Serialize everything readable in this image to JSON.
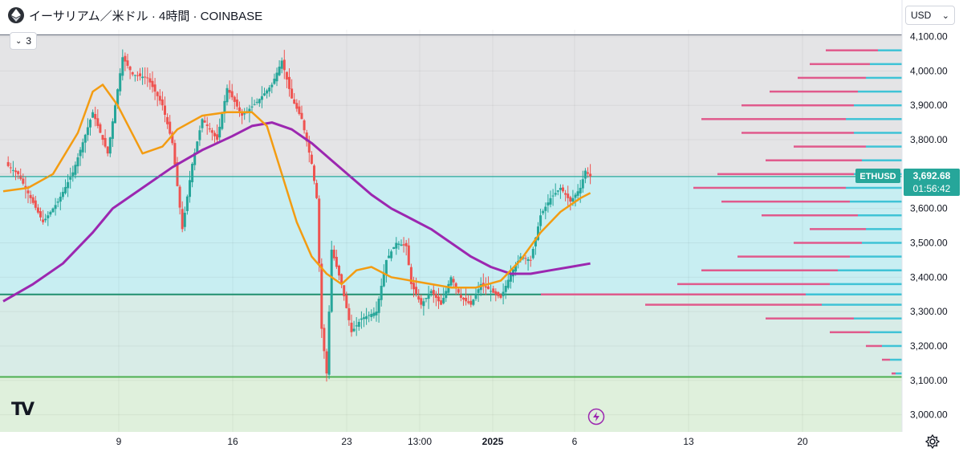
{
  "header": {
    "symbol_title": "イーサリアム／米ドル · 4時間 · COINBASE",
    "indicators_count": "3",
    "currency": "USD",
    "currency_caret": "⌄"
  },
  "colors": {
    "up": "#26a69a",
    "down": "#ef5350",
    "ema_orange": "#f39c12",
    "ma_purple": "#9c27b0",
    "upper_zone": "#c8eef2",
    "mid_zone": "#d8ece7",
    "low_zone": "#dff0dc",
    "top_zone": "#e4e4e6",
    "profile_up": "#3fc3d6",
    "profile_down": "#e05a8c"
  },
  "chart_data": {
    "type": "candlestick",
    "symbol": "ETHUSD",
    "last_price": "3,692.68",
    "countdown": "01:56:42",
    "ylim": [
      2950,
      4120
    ],
    "yticks": [
      "4,100.00",
      "4,000.00",
      "3,900.00",
      "3,800.00",
      "3,700.00",
      "3,600.00",
      "3,500.00",
      "3,400.00",
      "3,300.00",
      "3,200.00",
      "3,100.00",
      "3,000.00"
    ],
    "ytick_values": [
      4100,
      4000,
      3900,
      3800,
      3700,
      3600,
      3500,
      3400,
      3300,
      3200,
      3100,
      3000
    ],
    "xticks": [
      "9",
      "16",
      "23",
      "13:00",
      "2025",
      "6",
      "13",
      "20"
    ],
    "horizontal_levels": [
      4105,
      3693,
      3350,
      3110
    ],
    "price_path": [
      [
        0,
        3735
      ],
      [
        3,
        3700
      ],
      [
        8,
        3560
      ],
      [
        11,
        3620
      ],
      [
        14,
        3705
      ],
      [
        18,
        3880
      ],
      [
        21,
        3760
      ],
      [
        24,
        4040
      ],
      [
        26,
        3990
      ],
      [
        29,
        3980
      ],
      [
        32,
        3900
      ],
      [
        34,
        3790
      ],
      [
        36,
        3540
      ],
      [
        38,
        3730
      ],
      [
        40,
        3860
      ],
      [
        43,
        3800
      ],
      [
        45,
        3950
      ],
      [
        48,
        3870
      ],
      [
        51,
        3910
      ],
      [
        54,
        3960
      ],
      [
        56,
        4030
      ],
      [
        58,
        3920
      ],
      [
        60,
        3860
      ],
      [
        62,
        3730
      ],
      [
        63,
        3630
      ],
      [
        64,
        3250
      ],
      [
        65,
        3120
      ],
      [
        66,
        3480
      ],
      [
        68,
        3380
      ],
      [
        70,
        3240
      ],
      [
        72,
        3280
      ],
      [
        75,
        3300
      ],
      [
        77,
        3450
      ],
      [
        79,
        3500
      ],
      [
        81,
        3490
      ],
      [
        82,
        3380
      ],
      [
        84,
        3320
      ],
      [
        86,
        3360
      ],
      [
        88,
        3320
      ],
      [
        90,
        3400
      ],
      [
        92,
        3340
      ],
      [
        94,
        3320
      ],
      [
        96,
        3380
      ],
      [
        98,
        3360
      ],
      [
        100,
        3340
      ],
      [
        102,
        3410
      ],
      [
        104,
        3460
      ],
      [
        106,
        3450
      ],
      [
        108,
        3580
      ],
      [
        110,
        3630
      ],
      [
        112,
        3660
      ],
      [
        114,
        3620
      ],
      [
        116,
        3660
      ],
      [
        117,
        3710
      ],
      [
        118,
        3692.68
      ]
    ],
    "ema_path": [
      [
        0,
        3650
      ],
      [
        5,
        3660
      ],
      [
        10,
        3700
      ],
      [
        15,
        3820
      ],
      [
        18,
        3940
      ],
      [
        20,
        3960
      ],
      [
        23,
        3900
      ],
      [
        28,
        3760
      ],
      [
        32,
        3780
      ],
      [
        35,
        3830
      ],
      [
        40,
        3870
      ],
      [
        45,
        3880
      ],
      [
        50,
        3880
      ],
      [
        53,
        3840
      ],
      [
        56,
        3700
      ],
      [
        59,
        3560
      ],
      [
        62,
        3460
      ],
      [
        65,
        3410
      ],
      [
        68,
        3380
      ],
      [
        71,
        3420
      ],
      [
        74,
        3430
      ],
      [
        78,
        3400
      ],
      [
        82,
        3390
      ],
      [
        86,
        3380
      ],
      [
        90,
        3370
      ],
      [
        95,
        3370
      ],
      [
        100,
        3390
      ],
      [
        104,
        3450
      ],
      [
        108,
        3530
      ],
      [
        112,
        3590
      ],
      [
        116,
        3630
      ],
      [
        118,
        3645
      ]
    ],
    "ma_path": [
      [
        0,
        3330
      ],
      [
        6,
        3380
      ],
      [
        12,
        3440
      ],
      [
        18,
        3530
      ],
      [
        22,
        3600
      ],
      [
        28,
        3660
      ],
      [
        34,
        3720
      ],
      [
        40,
        3770
      ],
      [
        46,
        3810
      ],
      [
        50,
        3840
      ],
      [
        54,
        3850
      ],
      [
        58,
        3830
      ],
      [
        62,
        3790
      ],
      [
        66,
        3740
      ],
      [
        70,
        3690
      ],
      [
        74,
        3640
      ],
      [
        78,
        3600
      ],
      [
        82,
        3570
      ],
      [
        86,
        3540
      ],
      [
        90,
        3500
      ],
      [
        94,
        3460
      ],
      [
        98,
        3430
      ],
      [
        102,
        3410
      ],
      [
        106,
        3410
      ],
      [
        110,
        3420
      ],
      [
        114,
        3430
      ],
      [
        118,
        3440
      ]
    ],
    "volume_profile": [
      {
        "price": 4060,
        "up": 30,
        "down": 65
      },
      {
        "price": 4020,
        "up": 40,
        "down": 75
      },
      {
        "price": 3980,
        "up": 45,
        "down": 85
      },
      {
        "price": 3940,
        "up": 55,
        "down": 110
      },
      {
        "price": 3900,
        "up": 60,
        "down": 140
      },
      {
        "price": 3860,
        "up": 70,
        "down": 180
      },
      {
        "price": 3820,
        "up": 60,
        "down": 140
      },
      {
        "price": 3780,
        "up": 45,
        "down": 90
      },
      {
        "price": 3740,
        "up": 50,
        "down": 120
      },
      {
        "price": 3700,
        "up": 60,
        "down": 170
      },
      {
        "price": 3660,
        "up": 70,
        "down": 190
      },
      {
        "price": 3620,
        "up": 65,
        "down": 160
      },
      {
        "price": 3580,
        "up": 55,
        "down": 120
      },
      {
        "price": 3540,
        "up": 45,
        "down": 70
      },
      {
        "price": 3500,
        "up": 50,
        "down": 85
      },
      {
        "price": 3460,
        "up": 65,
        "down": 140
      },
      {
        "price": 3420,
        "up": 80,
        "down": 170
      },
      {
        "price": 3380,
        "up": 90,
        "down": 190
      },
      {
        "price": 3350,
        "up": 120,
        "down": 330
      },
      {
        "price": 3320,
        "up": 100,
        "down": 220
      },
      {
        "price": 3280,
        "up": 60,
        "down": 110
      },
      {
        "price": 3240,
        "up": 40,
        "down": 50
      },
      {
        "price": 3200,
        "up": 25,
        "down": 20
      },
      {
        "price": 3160,
        "up": 15,
        "down": 10
      },
      {
        "price": 3120,
        "up": 8,
        "down": 5
      }
    ]
  }
}
